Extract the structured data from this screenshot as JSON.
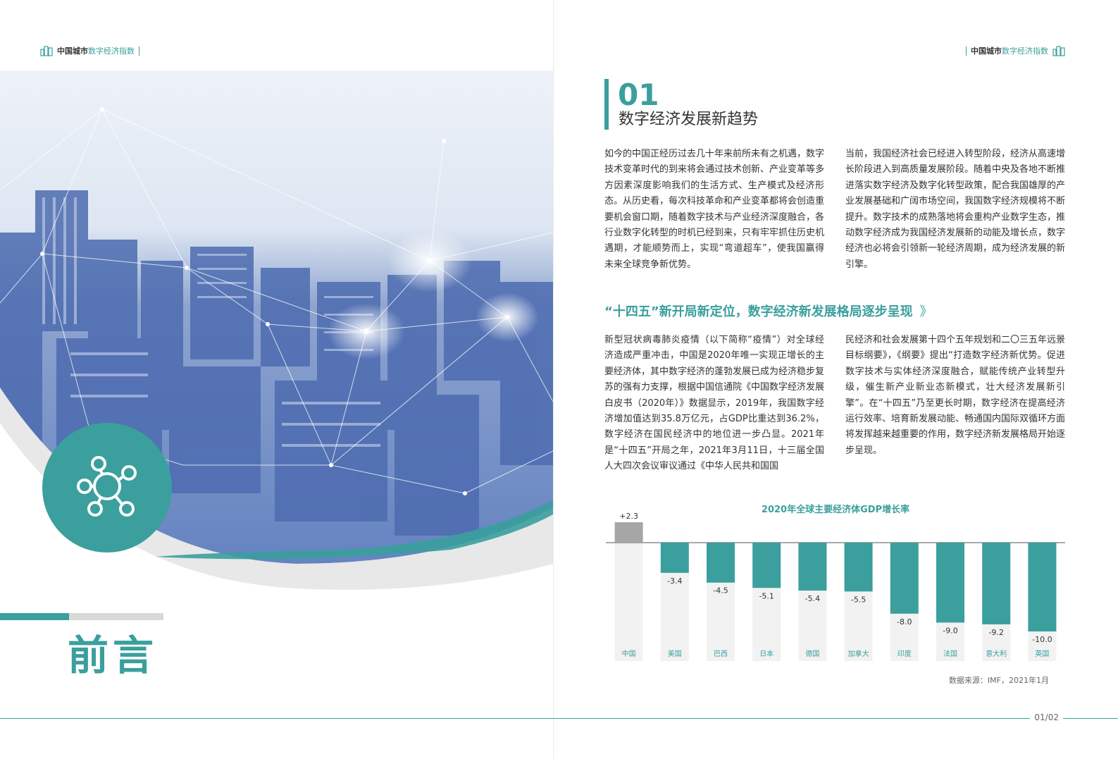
{
  "header": {
    "left_a": "中国城市",
    "left_b": "数字经济指数",
    "right_a": "中国城市",
    "right_b": "数字经济指数"
  },
  "preface_title": "前言",
  "section": {
    "number": "01",
    "title": "数字经济发展新趋势"
  },
  "para1": "如今的中国正经历过去几十年来前所未有之机遇，数字技术变革时代的到来将会通过技术创新、产业变革等多方因素深度影响我们的生活方式、生产模式及经济形态。从历史看，每次科技革命和产业变革都将会创造重要机会窗口期，随着数字技术与产业经济深度融合，各行业数字化转型的时机已经到来，只有牢牢抓住历史机遇期，才能顺势而上，实现“弯道超车”，使我国赢得未来全球竞争新优势。",
  "para2": "当前，我国经济社会已经进入转型阶段，经济从高速增长阶段进入到高质量发展阶段。随着中央及各地不断推进落实数字经济及数字化转型政策，配合我国雄厚的产业发展基础和广阔市场空间，我国数字经济规模将不断提升。数字技术的成熟落地将会重构产业数字生态，推动数字经济成为我国经济发展新的动能及增长点，数字经济也必将会引领新一轮经济周期，成为经济发展的新引擎。",
  "subheading": "“十四五”新开局新定位，数字经济新发展格局逐步呈现",
  "subheading_arrows": "》",
  "para3": "新型冠状病毒肺炎疫情（以下简称“疫情”）对全球经济造成严重冲击，中国是2020年唯一实现正增长的主要经济体，其中数字经济的蓬勃发展已成为经济稳步复苏的强有力支撑，根据中国信通院《中国数字经济发展白皮书（2020年）》数据显示，2019年，我国数字经济增加值达到35.8万亿元，占GDP比重达到36.2%，数字经济在国民经济中的地位进一步凸显。2021年是“十四五”开局之年，2021年3月11日，十三届全国人大四次会议审议通过《中华人民共和国国",
  "para4": "民经济和社会发展第十四个五年规划和二〇三五年远景目标纲要》，《纲要》提出“打造数字经济新优势。促进数字技术与实体经济深度融合，赋能传统产业转型升级，催生新产业新业态新模式，壮大经济发展新引擎”。在“十四五”乃至更长时期，数字经济在提高经济运行效率、培育新发展动能、畅通国内国际双循环方面将发挥越来越重要的作用，数字经济新发展格局开始逐步呈现。",
  "chart_data": {
    "type": "bar",
    "title": "2020年全球主要经济体GDP增长率",
    "categories": [
      "中国",
      "美国",
      "巴西",
      "日本",
      "德国",
      "加拿大",
      "印度",
      "法国",
      "意大利",
      "英国"
    ],
    "values": [
      2.3,
      -3.4,
      -4.5,
      -5.1,
      -5.4,
      -5.5,
      -8.0,
      -9.0,
      -9.2,
      -10.0
    ],
    "value_labels": [
      "+2.3",
      "-3.4",
      "-4.5",
      "-5.1",
      "-5.4",
      "-5.5",
      "-8.0",
      "-9.0",
      "-9.2",
      "-10.0"
    ],
    "ylim": [
      -10.0,
      2.3
    ],
    "colors": {
      "positive": "#a6a6a6",
      "negative": "#3a9f9d",
      "backdrop": "#f2f2f2"
    }
  },
  "source": "数据来源：IMF，2021年1月",
  "page_number": "01/02"
}
